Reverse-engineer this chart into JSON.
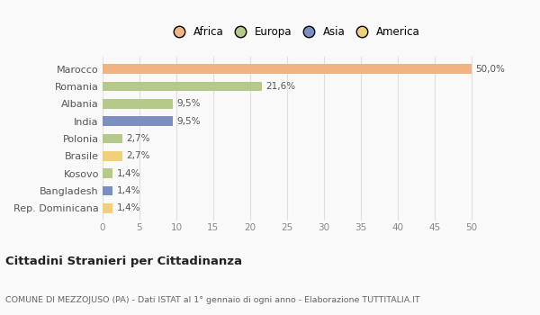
{
  "countries": [
    "Marocco",
    "Romania",
    "Albania",
    "India",
    "Polonia",
    "Brasile",
    "Kosovo",
    "Bangladesh",
    "Rep. Dominicana"
  ],
  "values": [
    50.0,
    21.6,
    9.5,
    9.5,
    2.7,
    2.7,
    1.4,
    1.4,
    1.4
  ],
  "labels": [
    "50,0%",
    "21,6%",
    "9,5%",
    "9,5%",
    "2,7%",
    "2,7%",
    "1,4%",
    "1,4%",
    "1,4%"
  ],
  "colors": [
    "#f0b483",
    "#b5c98a",
    "#b5c98a",
    "#7b8fc0",
    "#b5c98a",
    "#f0d07a",
    "#b5c98a",
    "#7b8fc0",
    "#f0d07a"
  ],
  "legend_labels": [
    "Africa",
    "Europa",
    "Asia",
    "America"
  ],
  "legend_colors": [
    "#f0b483",
    "#b5c98a",
    "#7b8fc0",
    "#f0d07a"
  ],
  "title": "Cittadini Stranieri per Cittadinanza",
  "subtitle": "COMUNE DI MEZZOJUSO (PA) - Dati ISTAT al 1° gennaio di ogni anno - Elaborazione TUTTITALIA.IT",
  "xlim": [
    0,
    52
  ],
  "xticks": [
    0,
    5,
    10,
    15,
    20,
    25,
    30,
    35,
    40,
    45,
    50
  ],
  "background_color": "#f9f9f9",
  "grid_color": "#e0e0e0"
}
